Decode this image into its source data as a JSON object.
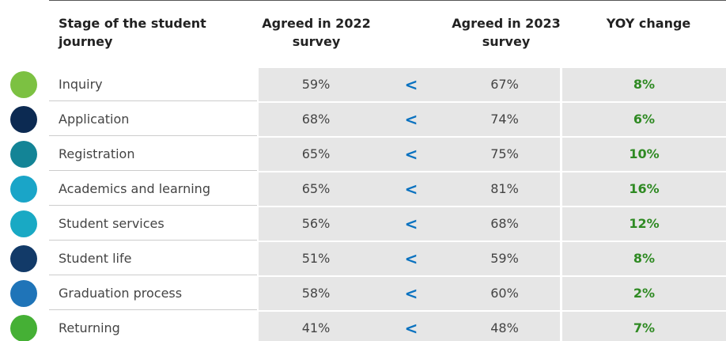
{
  "table": {
    "header": [
      "Stage of the student journey",
      "Agreed in 2022 survey",
      "",
      "Agreed in 2023 survey",
      "YOY change"
    ],
    "rows": [
      [
        "Inquiry",
        "59%",
        "<",
        "67%",
        "8%"
      ],
      [
        "Application",
        "68%",
        "<",
        "74%",
        "6%"
      ],
      [
        "Registration",
        "65%",
        "<",
        "75%",
        "10%"
      ],
      [
        "Academics and learning",
        "65%",
        "<",
        "81%",
        "16%"
      ],
      [
        "Student services",
        "56%",
        "<",
        "68%",
        "12%"
      ],
      [
        "Student life",
        "51%",
        "<",
        "59%",
        "8%"
      ],
      [
        "Graduation process",
        "58%",
        "<",
        "60%",
        "2%"
      ],
      [
        "Returning",
        "41%",
        "<",
        "48%",
        "7%"
      ]
    ]
  }
}
